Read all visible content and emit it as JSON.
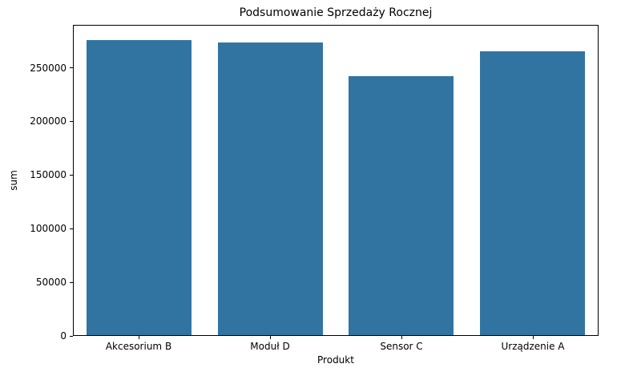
{
  "chart": {
    "title": "Podsumowanie Sprzedaży Rocznej",
    "xlabel": "Produkt",
    "ylabel": "sum"
  },
  "chart_data": {
    "type": "bar",
    "title": "Podsumowanie Sprzedaży Rocznej",
    "xlabel": "Produkt",
    "ylabel": "sum",
    "categories": [
      "Akcesorium B",
      "Moduł D",
      "Sensor C",
      "Urządzenie A"
    ],
    "values": [
      276800,
      274400,
      243000,
      266200
    ],
    "yticks": [
      0,
      50000,
      100000,
      150000,
      200000,
      250000
    ],
    "ylim": [
      0,
      290000
    ],
    "bar_color": "#3274a1",
    "bar_width_fraction": 0.8,
    "grid": false,
    "legend": "none",
    "background_color": "#ffffff",
    "spine_color": "#000000"
  }
}
